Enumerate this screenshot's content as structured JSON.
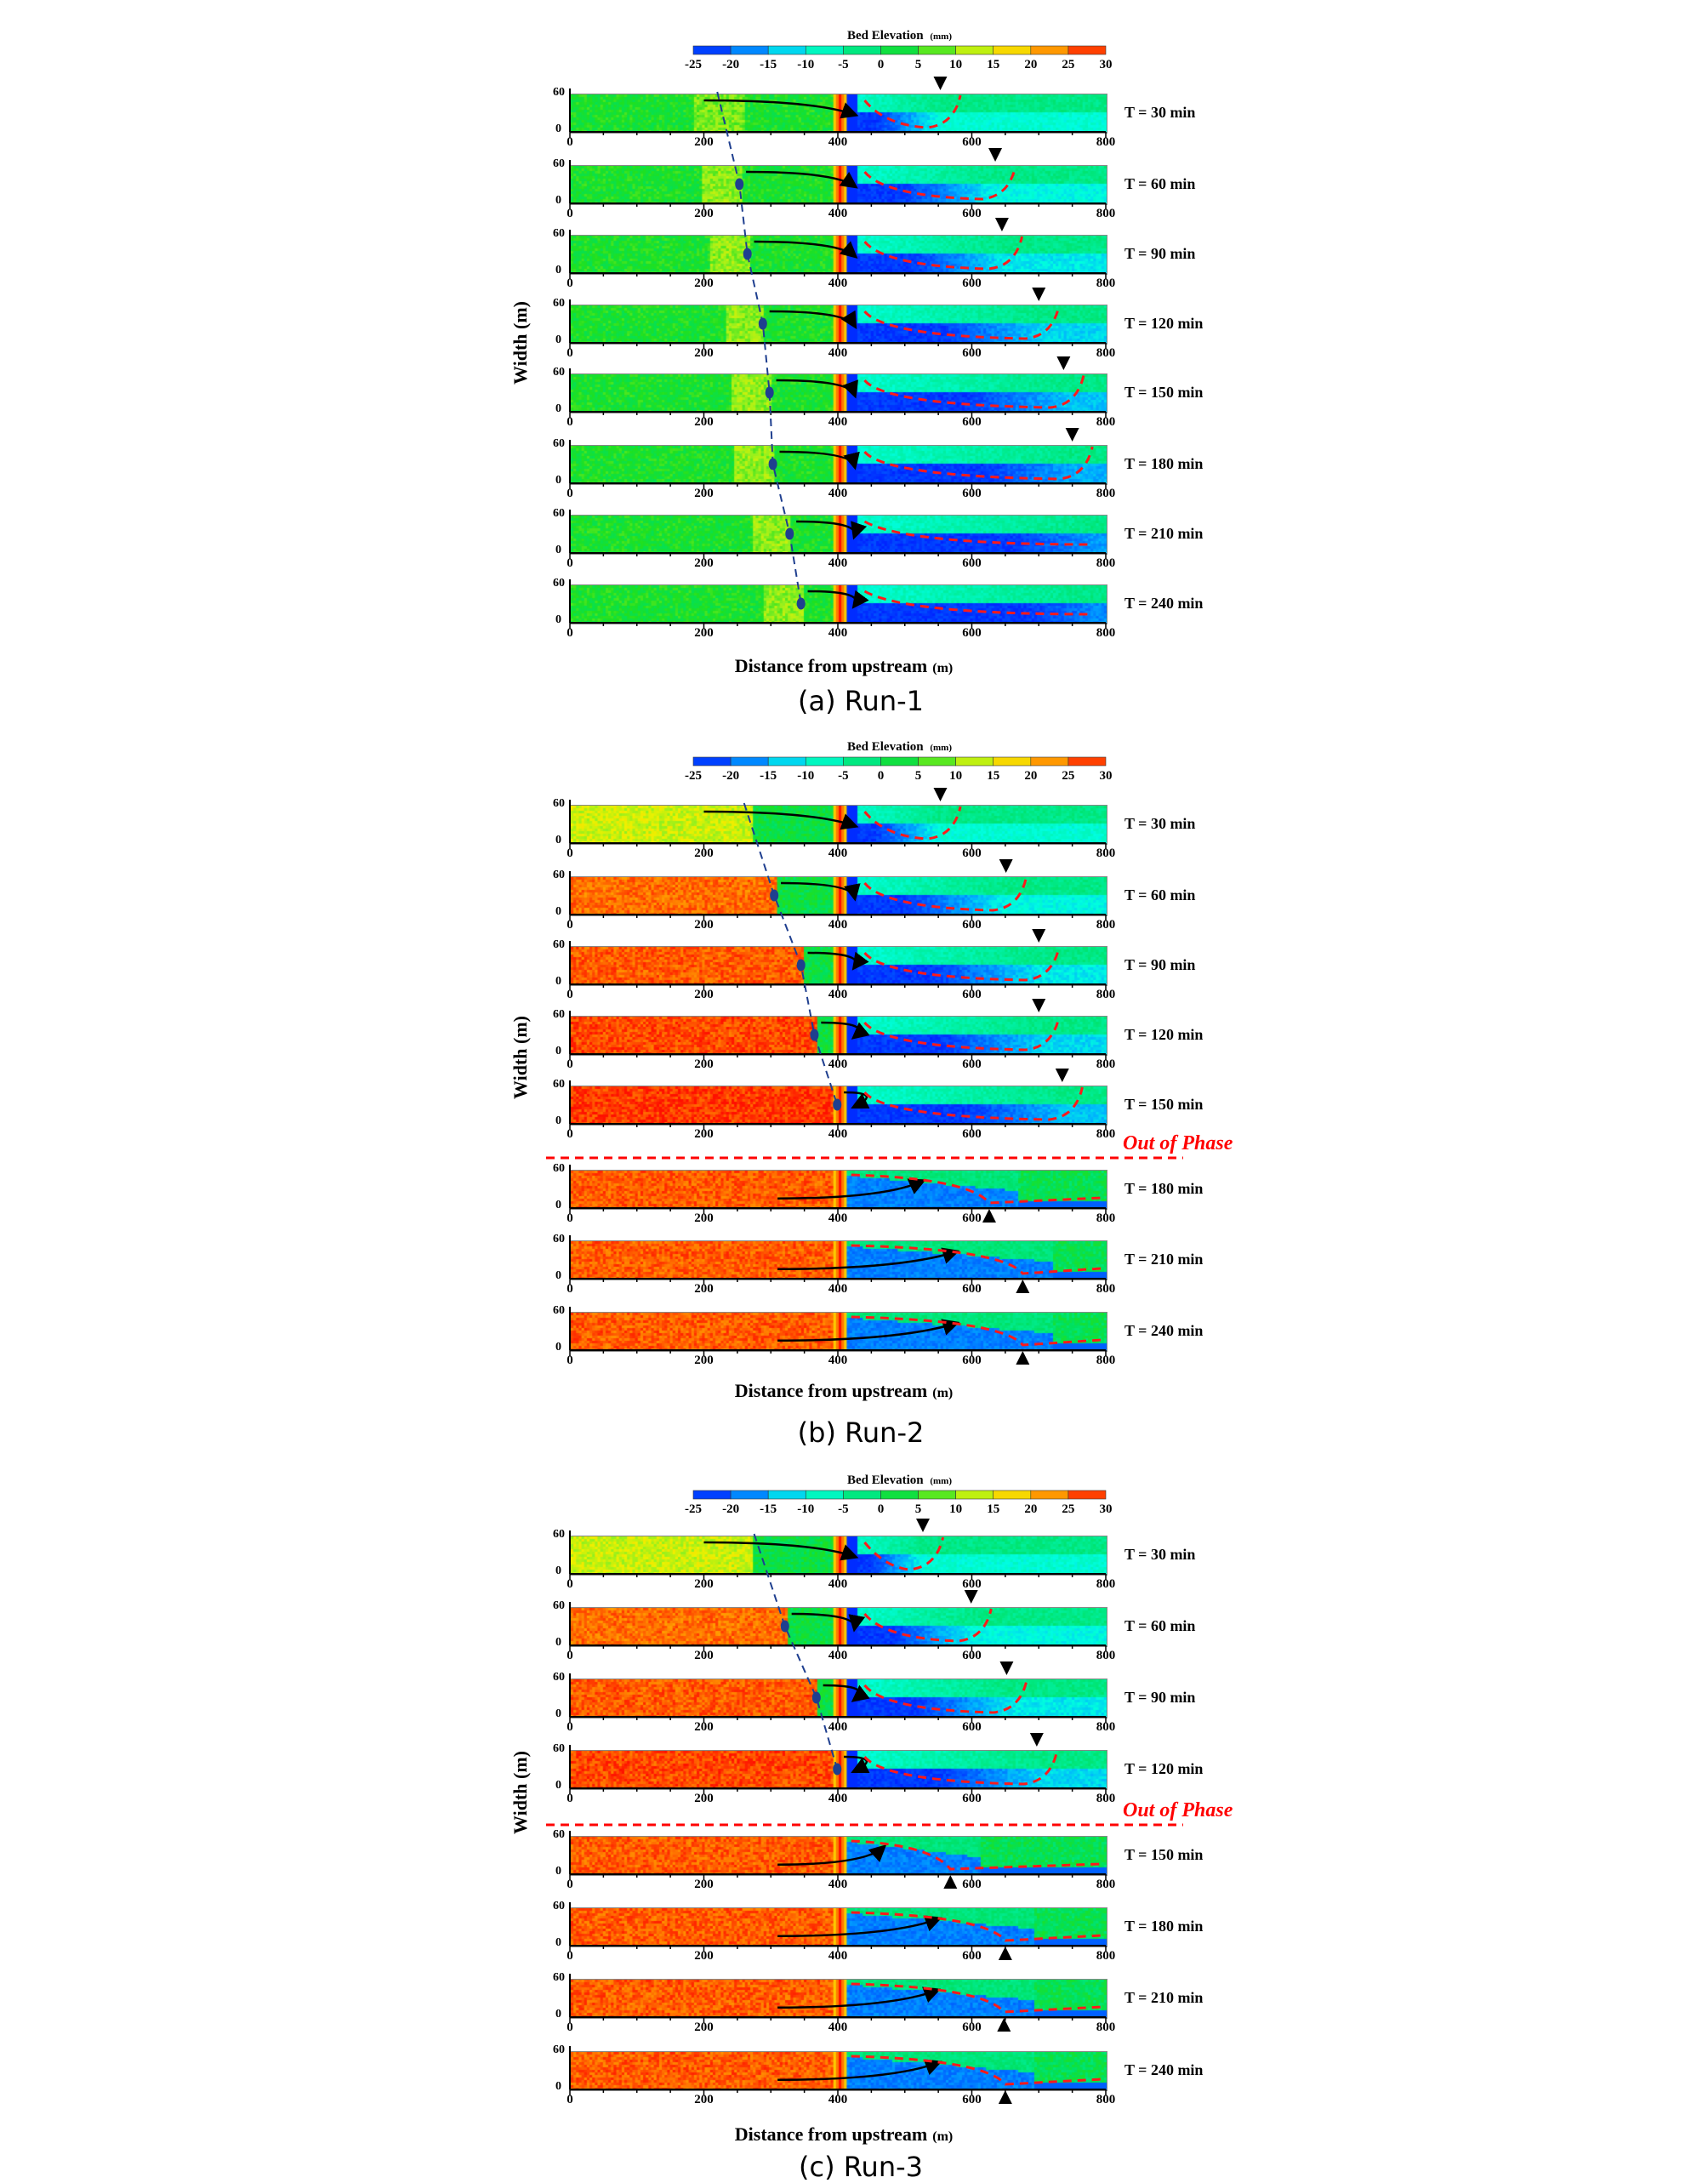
{
  "chart_data": {
    "type": "heatmap",
    "colorbar": {
      "title": "Bed Elevation",
      "unit": "(mm)",
      "ticks": [
        "-25",
        "-20",
        "-15",
        "-10",
        "-5",
        "0",
        "5",
        "10",
        "15",
        "20",
        "25",
        "30"
      ],
      "colors": [
        "#0020ff",
        "#0060ff",
        "#00b0ff",
        "#00ffe0",
        "#00f0a0",
        "#00e060",
        "#20e020",
        "#90f020",
        "#f0f000",
        "#ffc000",
        "#ff7000",
        "#ff1000"
      ],
      "range": [
        -25,
        30
      ]
    },
    "xlabel": "Distance from upstream",
    "xunit": "(m)",
    "ylabel": "Width (m)",
    "xticks": [
      "0",
      "200",
      "400",
      "600",
      "800"
    ],
    "yticks": [
      "60",
      "0"
    ],
    "xlim": [
      0,
      800
    ],
    "ylim": [
      0,
      60
    ],
    "runs": [
      {
        "caption": "(a) Run-1",
        "upstream": "moderate",
        "panels": [
          {
            "label": "T = 30 min",
            "marker_x": 553,
            "marker_dir": "down",
            "front_x": null
          },
          {
            "label": "T = 60 min",
            "marker_x": 635,
            "marker_dir": "down",
            "front_x": 253
          },
          {
            "label": "T = 90 min",
            "marker_x": 645,
            "marker_dir": "down",
            "front_x": 265
          },
          {
            "label": "T = 120 min",
            "marker_x": 700,
            "marker_dir": "down",
            "front_x": 288
          },
          {
            "label": "T = 150 min",
            "marker_x": 737,
            "marker_dir": "down",
            "front_x": 298
          },
          {
            "label": "T = 180 min",
            "marker_x": 750,
            "marker_dir": "down",
            "front_x": 303
          },
          {
            "label": "T = 210 min",
            "marker_x": null,
            "marker_dir": "down",
            "front_x": 328
          },
          {
            "label": "T = 240 min",
            "marker_x": null,
            "marker_dir": "down",
            "front_x": 345
          }
        ]
      },
      {
        "caption": "(b) Run-2",
        "upstream": "high",
        "out_of_phase_label": "Out of Phase",
        "out_of_phase_after": 4,
        "panels": [
          {
            "label": "T = 30 min",
            "marker_x": 553,
            "marker_dir": "down",
            "front_x": null
          },
          {
            "label": "T = 60 min",
            "marker_x": 651,
            "marker_dir": "down",
            "front_x": 305
          },
          {
            "label": "T = 90 min",
            "marker_x": 700,
            "marker_dir": "down",
            "front_x": 345
          },
          {
            "label": "T = 120 min",
            "marker_x": 700,
            "marker_dir": "down",
            "front_x": 365
          },
          {
            "label": "T = 150 min",
            "marker_x": 735,
            "marker_dir": "down",
            "front_x": 399
          },
          {
            "label": "T = 180 min",
            "marker_x": 626,
            "marker_dir": "up",
            "front_x": null
          },
          {
            "label": "T = 210 min",
            "marker_x": 676,
            "marker_dir": "up",
            "front_x": null
          },
          {
            "label": "T = 240 min",
            "marker_x": 676,
            "marker_dir": "up",
            "front_x": null
          }
        ]
      },
      {
        "caption": "(c) Run-3",
        "upstream": "high",
        "out_of_phase_label": "Out of Phase",
        "out_of_phase_after": 3,
        "panels": [
          {
            "label": "T = 30 min",
            "marker_x": 527,
            "marker_dir": "down",
            "front_x": null
          },
          {
            "label": "T = 60 min",
            "marker_x": 599,
            "marker_dir": "down",
            "front_x": 321
          },
          {
            "label": "T = 90 min",
            "marker_x": 652,
            "marker_dir": "down",
            "front_x": 368
          },
          {
            "label": "T = 120 min",
            "marker_x": 697,
            "marker_dir": "down",
            "front_x": 399
          },
          {
            "label": "T = 150 min",
            "marker_x": 568,
            "marker_dir": "up",
            "front_x": null
          },
          {
            "label": "T = 180 min",
            "marker_x": 650,
            "marker_dir": "up",
            "front_x": null
          },
          {
            "label": "T = 210 min",
            "marker_x": 648,
            "marker_dir": "up",
            "front_x": null
          },
          {
            "label": "T = 240 min",
            "marker_x": 650,
            "marker_dir": "up",
            "front_x": null
          }
        ]
      }
    ]
  }
}
